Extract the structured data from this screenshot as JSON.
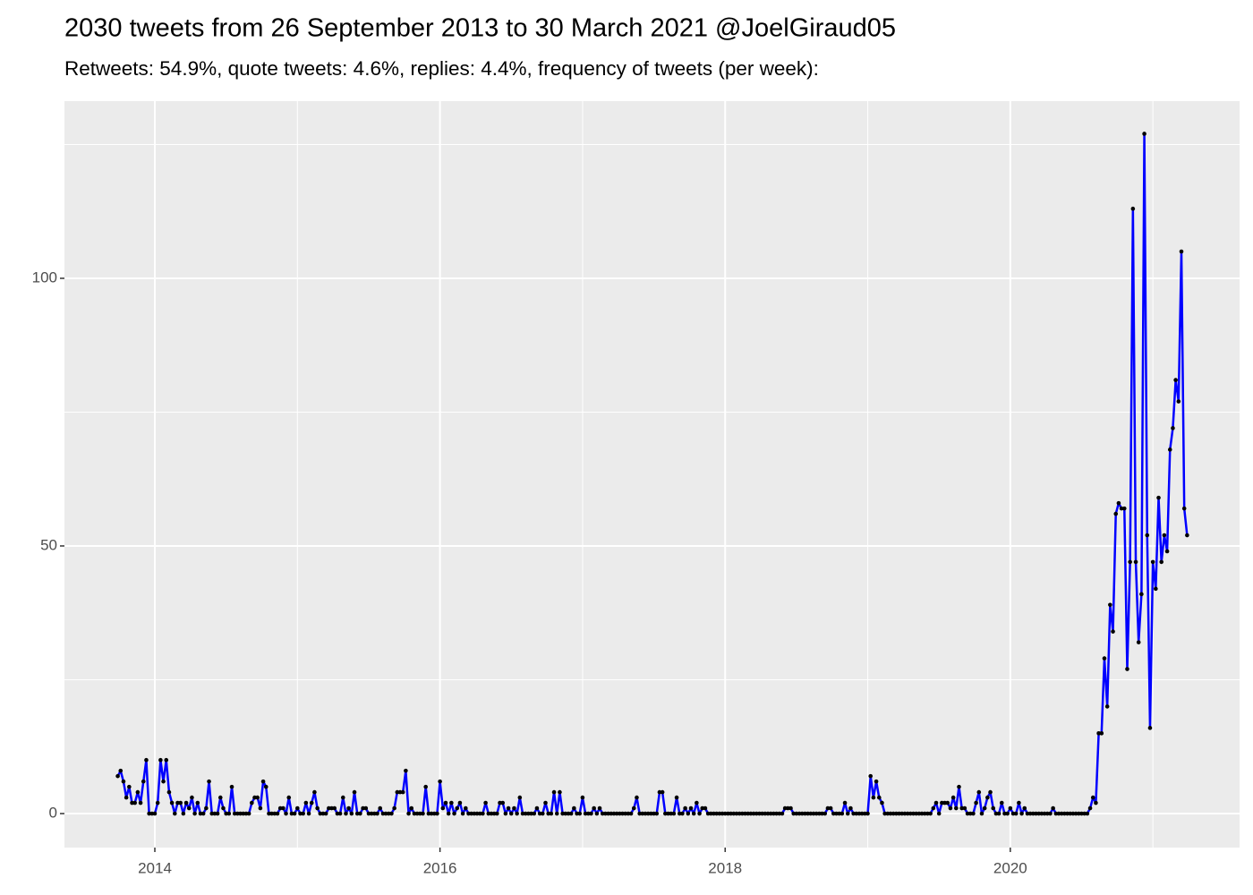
{
  "chart_data": {
    "type": "line",
    "title": "2030 tweets from 26 September 2013 to 30 March 2021 @JoelGiraud05",
    "subtitle": "Retweets: 54.9%, quote tweets: 4.6%, replies: 4.4%, frequency of tweets (per week):",
    "x": [
      2013.74,
      2013.76,
      2013.78,
      2013.8,
      2013.82,
      2013.84,
      2013.86,
      2013.88,
      2013.9,
      2013.92,
      2013.94,
      2013.96,
      2013.98,
      2014.0,
      2014.02,
      2014.04,
      2014.06,
      2014.08,
      2014.1,
      2014.12,
      2014.14,
      2014.16,
      2014.18,
      2014.2,
      2014.22,
      2014.24,
      2014.26,
      2014.28,
      2014.3,
      2014.32,
      2014.34,
      2014.36,
      2014.38,
      2014.4,
      2014.42,
      2014.44,
      2014.46,
      2014.48,
      2014.5,
      2014.52,
      2014.54,
      2014.56,
      2014.58,
      2014.6,
      2014.62,
      2014.64,
      2014.66,
      2014.68,
      2014.7,
      2014.72,
      2014.74,
      2014.76,
      2014.78,
      2014.8,
      2014.82,
      2014.84,
      2014.86,
      2014.88,
      2014.9,
      2014.92,
      2014.94,
      2014.96,
      2014.98,
      2015.0,
      2015.02,
      2015.04,
      2015.06,
      2015.08,
      2015.1,
      2015.12,
      2015.14,
      2015.16,
      2015.18,
      2015.2,
      2015.22,
      2015.24,
      2015.26,
      2015.28,
      2015.3,
      2015.32,
      2015.34,
      2015.36,
      2015.38,
      2015.4,
      2015.42,
      2015.44,
      2015.46,
      2015.48,
      2015.5,
      2015.52,
      2015.54,
      2015.56,
      2015.58,
      2015.6,
      2015.62,
      2015.64,
      2015.66,
      2015.68,
      2015.7,
      2015.72,
      2015.74,
      2015.76,
      2015.78,
      2015.8,
      2015.82,
      2015.84,
      2015.86,
      2015.88,
      2015.9,
      2015.92,
      2015.94,
      2015.96,
      2015.98,
      2016.0,
      2016.02,
      2016.04,
      2016.06,
      2016.08,
      2016.1,
      2016.12,
      2016.14,
      2016.16,
      2016.18,
      2016.2,
      2016.22,
      2016.24,
      2016.26,
      2016.28,
      2016.3,
      2016.32,
      2016.34,
      2016.36,
      2016.38,
      2016.4,
      2016.42,
      2016.44,
      2016.46,
      2016.48,
      2016.5,
      2016.52,
      2016.54,
      2016.56,
      2016.58,
      2016.6,
      2016.62,
      2016.64,
      2016.66,
      2016.68,
      2016.7,
      2016.72,
      2016.74,
      2016.76,
      2016.78,
      2016.8,
      2016.82,
      2016.84,
      2016.86,
      2016.88,
      2016.9,
      2016.92,
      2016.94,
      2016.96,
      2016.98,
      2017.0,
      2017.02,
      2017.04,
      2017.06,
      2017.08,
      2017.1,
      2017.12,
      2017.14,
      2017.16,
      2017.18,
      2017.2,
      2017.22,
      2017.24,
      2017.26,
      2017.28,
      2017.3,
      2017.32,
      2017.34,
      2017.36,
      2017.38,
      2017.4,
      2017.42,
      2017.44,
      2017.46,
      2017.48,
      2017.5,
      2017.52,
      2017.54,
      2017.56,
      2017.58,
      2017.6,
      2017.62,
      2017.64,
      2017.66,
      2017.68,
      2017.7,
      2017.72,
      2017.74,
      2017.76,
      2017.78,
      2017.8,
      2017.82,
      2017.84,
      2017.86,
      2017.88,
      2017.9,
      2017.92,
      2017.94,
      2017.96,
      2017.98,
      2018.0,
      2018.02,
      2018.04,
      2018.06,
      2018.08,
      2018.1,
      2018.12,
      2018.14,
      2018.16,
      2018.18,
      2018.2,
      2018.22,
      2018.24,
      2018.26,
      2018.28,
      2018.3,
      2018.32,
      2018.34,
      2018.36,
      2018.38,
      2018.4,
      2018.42,
      2018.44,
      2018.46,
      2018.48,
      2018.5,
      2018.52,
      2018.54,
      2018.56,
      2018.58,
      2018.6,
      2018.62,
      2018.64,
      2018.66,
      2018.68,
      2018.7,
      2018.72,
      2018.74,
      2018.76,
      2018.78,
      2018.8,
      2018.82,
      2018.84,
      2018.86,
      2018.88,
      2018.9,
      2018.92,
      2018.94,
      2018.96,
      2018.98,
      2019.0,
      2019.02,
      2019.04,
      2019.06,
      2019.08,
      2019.1,
      2019.12,
      2019.14,
      2019.16,
      2019.18,
      2019.2,
      2019.22,
      2019.24,
      2019.26,
      2019.28,
      2019.3,
      2019.32,
      2019.34,
      2019.36,
      2019.38,
      2019.4,
      2019.42,
      2019.44,
      2019.46,
      2019.48,
      2019.5,
      2019.52,
      2019.54,
      2019.56,
      2019.58,
      2019.6,
      2019.62,
      2019.64,
      2019.66,
      2019.68,
      2019.7,
      2019.72,
      2019.74,
      2019.76,
      2019.78,
      2019.8,
      2019.82,
      2019.84,
      2019.86,
      2019.88,
      2019.9,
      2019.92,
      2019.94,
      2019.96,
      2019.98,
      2020.0,
      2020.02,
      2020.04,
      2020.06,
      2020.08,
      2020.1,
      2020.12,
      2020.14,
      2020.16,
      2020.18,
      2020.2,
      2020.22,
      2020.24,
      2020.26,
      2020.28,
      2020.3,
      2020.32,
      2020.34,
      2020.36,
      2020.38,
      2020.4,
      2020.42,
      2020.44,
      2020.46,
      2020.48,
      2020.5,
      2020.52,
      2020.54,
      2020.56,
      2020.58,
      2020.6,
      2020.62,
      2020.64,
      2020.66,
      2020.68,
      2020.7,
      2020.72,
      2020.74,
      2020.76,
      2020.78,
      2020.8,
      2020.82,
      2020.84,
      2020.86,
      2020.88,
      2020.9,
      2020.92,
      2020.94,
      2020.96,
      2020.98,
      2021.0,
      2021.02,
      2021.04,
      2021.06,
      2021.08,
      2021.1,
      2021.12,
      2021.14,
      2021.16,
      2021.18,
      2021.2,
      2021.22,
      2021.24
    ],
    "series": [
      {
        "color": "#0000ff",
        "point_color": "#000000",
        "values": [
          7,
          8,
          6,
          3,
          5,
          2,
          2,
          4,
          2,
          6,
          10,
          0,
          0,
          0,
          2,
          10,
          6,
          10,
          4,
          2,
          0,
          2,
          2,
          0,
          2,
          1,
          3,
          0,
          2,
          0,
          0,
          1,
          6,
          0,
          0,
          0,
          3,
          1,
          0,
          0,
          5,
          0,
          0,
          0,
          0,
          0,
          0,
          2,
          3,
          3,
          1,
          6,
          5,
          0,
          0,
          0,
          0,
          1,
          1,
          0,
          3,
          0,
          0,
          1,
          0,
          0,
          2,
          0,
          2,
          4,
          1,
          0,
          0,
          0,
          1,
          1,
          1,
          0,
          0,
          3,
          0,
          1,
          0,
          4,
          0,
          0,
          1,
          1,
          0,
          0,
          0,
          0,
          1,
          0,
          0,
          0,
          0,
          1,
          4,
          4,
          4,
          8,
          0,
          1,
          0,
          0,
          0,
          0,
          5,
          0,
          0,
          0,
          0,
          6,
          1,
          2,
          0,
          2,
          0,
          1,
          2,
          0,
          1,
          0,
          0,
          0,
          0,
          0,
          0,
          2,
          0,
          0,
          0,
          0,
          2,
          2,
          0,
          1,
          0,
          1,
          0,
          3,
          0,
          0,
          0,
          0,
          0,
          1,
          0,
          0,
          2,
          0,
          0,
          4,
          0,
          4,
          0,
          0,
          0,
          0,
          1,
          0,
          0,
          3,
          0,
          0,
          0,
          1,
          0,
          1,
          0,
          0,
          0,
          0,
          0,
          0,
          0,
          0,
          0,
          0,
          0,
          1,
          3,
          0,
          0,
          0,
          0,
          0,
          0,
          0,
          4,
          4,
          0,
          0,
          0,
          0,
          3,
          0,
          0,
          1,
          0,
          1,
          0,
          2,
          0,
          1,
          1,
          0,
          0,
          0,
          0,
          0,
          0,
          0,
          0,
          0,
          0,
          0,
          0,
          0,
          0,
          0,
          0,
          0,
          0,
          0,
          0,
          0,
          0,
          0,
          0,
          0,
          0,
          0,
          1,
          1,
          1,
          0,
          0,
          0,
          0,
          0,
          0,
          0,
          0,
          0,
          0,
          0,
          0,
          1,
          1,
          0,
          0,
          0,
          0,
          2,
          0,
          1,
          0,
          0,
          0,
          0,
          0,
          0,
          7,
          3,
          6,
          3,
          2,
          0,
          0,
          0,
          0,
          0,
          0,
          0,
          0,
          0,
          0,
          0,
          0,
          0,
          0,
          0,
          0,
          0,
          1,
          2,
          0,
          2,
          2,
          2,
          1,
          3,
          1,
          5,
          1,
          1,
          0,
          0,
          0,
          2,
          4,
          0,
          1,
          3,
          4,
          1,
          0,
          0,
          2,
          0,
          0,
          1,
          0,
          0,
          2,
          0,
          1,
          0,
          0,
          0,
          0,
          0,
          0,
          0,
          0,
          0,
          1,
          0,
          0,
          0,
          0,
          0,
          0,
          0,
          0,
          0,
          0,
          0,
          0,
          1,
          3,
          2,
          15,
          15,
          29,
          20,
          39,
          34,
          56,
          58,
          57,
          57,
          27,
          47,
          113,
          47,
          32,
          41,
          127,
          52,
          16,
          47,
          42,
          59,
          47,
          52,
          49,
          68,
          72,
          81,
          77,
          105,
          57,
          52
        ]
      }
    ],
    "xlim": [
      2013.366,
      2021.608
    ],
    "xticks": [
      2014,
      2016,
      2018,
      2020
    ],
    "ylim": [
      -6.35,
      133.1
    ],
    "yticks": [
      0,
      50,
      100
    ],
    "grid": true,
    "minor_grid": true,
    "panel_color": "#ebebeb",
    "grid_color": "#ffffff"
  }
}
